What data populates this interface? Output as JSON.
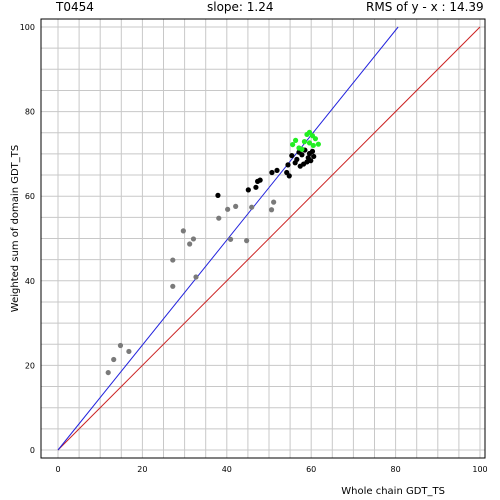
{
  "header": {
    "target": "T0454",
    "slope": "slope: 1.24",
    "rms": "RMS of  y - x : 14.39"
  },
  "chart_data": {
    "type": "scatter",
    "xlabel": "Whole chain GDT_TS",
    "ylabel": "Weighted sum of domain GDT_TS",
    "xlim": [
      0,
      100
    ],
    "ylim": [
      0,
      100
    ],
    "x_ticks": [
      "0",
      "20",
      "40",
      "60",
      "80",
      "100"
    ],
    "y_ticks": [
      "0",
      "20",
      "40",
      "60",
      "80",
      "100"
    ],
    "grid": true,
    "colors": {
      "grid": "#c8c8c8",
      "diagonal": "#cc2222",
      "fit": "#2222dd",
      "gray": "#7a7a7a",
      "black": "#000000",
      "green": "#22ee22"
    },
    "lines": [
      {
        "name": "y=x",
        "color": "#cc2222",
        "points": [
          [
            0,
            0
          ],
          [
            100,
            100
          ]
        ]
      },
      {
        "name": "fit",
        "color": "#2222dd",
        "points": [
          [
            0,
            0
          ],
          [
            80.6,
            100
          ]
        ]
      }
    ],
    "series": [
      {
        "color": "#7a7a7a",
        "points": [
          [
            11.9,
            18.3
          ],
          [
            13.2,
            21.4
          ],
          [
            14.8,
            24.7
          ],
          [
            16.8,
            23.3
          ],
          [
            27.2,
            38.7
          ],
          [
            27.2,
            44.9
          ],
          [
            29.7,
            51.8
          ],
          [
            31.2,
            48.7
          ],
          [
            32.1,
            49.9
          ],
          [
            32.7,
            40.9
          ],
          [
            38.1,
            54.8
          ],
          [
            40.2,
            56.9
          ],
          [
            40.9,
            49.8
          ],
          [
            42.1,
            57.6
          ],
          [
            44.7,
            49.5
          ],
          [
            45.9,
            57.4
          ],
          [
            50.6,
            56.8
          ],
          [
            51.1,
            58.6
          ]
        ]
      },
      {
        "color": "#000000",
        "points": [
          [
            37.9,
            60.2
          ],
          [
            45.1,
            61.5
          ],
          [
            46.9,
            62.1
          ],
          [
            47.3,
            63.5
          ],
          [
            47.9,
            63.8
          ],
          [
            50.7,
            65.6
          ],
          [
            51.9,
            66.1
          ],
          [
            54.2,
            65.6
          ],
          [
            54.8,
            64.8
          ],
          [
            54.5,
            67.4
          ],
          [
            55.4,
            69.6
          ],
          [
            56.2,
            67.9
          ],
          [
            56.6,
            68.7
          ],
          [
            57.1,
            70.4
          ],
          [
            57.4,
            67.1
          ],
          [
            57.8,
            69.8
          ],
          [
            58.2,
            67.6
          ],
          [
            58.5,
            70.9
          ],
          [
            59.0,
            68.1
          ],
          [
            59.3,
            69.1
          ],
          [
            59.6,
            70.1
          ],
          [
            59.9,
            68.4
          ],
          [
            60.3,
            70.6
          ],
          [
            60.6,
            69.4
          ]
        ]
      },
      {
        "color": "#22ee22",
        "points": [
          [
            55.6,
            72.2
          ],
          [
            56.3,
            73.2
          ],
          [
            57.1,
            71.4
          ],
          [
            57.8,
            71.1
          ],
          [
            58.4,
            72.9
          ],
          [
            59.0,
            74.6
          ],
          [
            59.6,
            75.1
          ],
          [
            59.6,
            72.6
          ],
          [
            60.3,
            74.3
          ],
          [
            60.5,
            72.0
          ],
          [
            61.0,
            73.6
          ],
          [
            61.7,
            72.3
          ]
        ]
      }
    ]
  }
}
